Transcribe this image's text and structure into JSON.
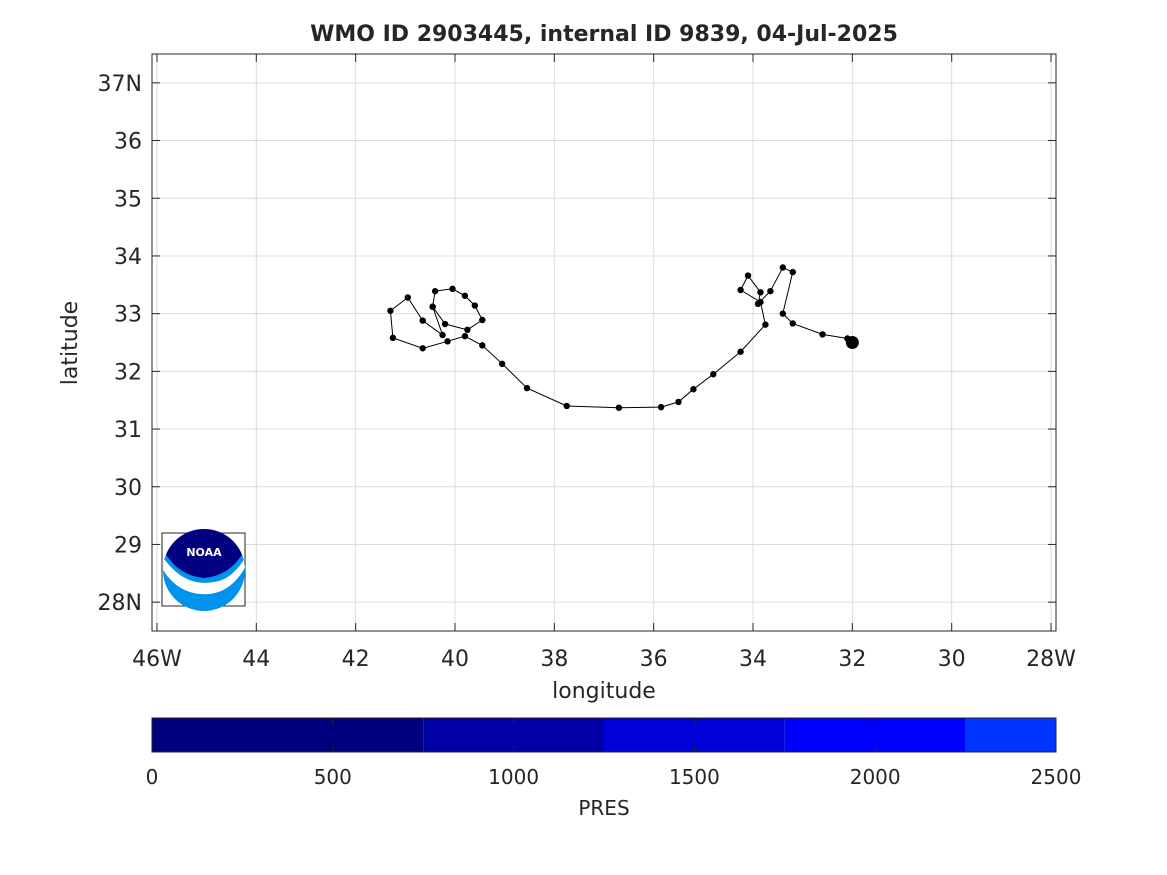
{
  "chart_data": [
    {
      "type": "scatter",
      "title": "WMO ID 2903445, internal ID 9839, 04-Jul-2025",
      "xlabel": "longitude",
      "ylabel": "latitude",
      "xlim": [
        -46.1,
        -27.9
      ],
      "ylim": [
        27.5,
        37.5
      ],
      "grid": true,
      "x_ticks": [
        -46,
        -44,
        -42,
        -40,
        -38,
        -36,
        -34,
        -32,
        -30,
        -28
      ],
      "x_tick_labels": [
        "46W",
        "44",
        "42",
        "40",
        "38",
        "36",
        "34",
        "32",
        "30",
        "28W"
      ],
      "y_ticks": [
        28,
        29,
        30,
        31,
        32,
        33,
        34,
        35,
        36,
        37
      ],
      "y_tick_labels": [
        "28N",
        "29",
        "30",
        "31",
        "32",
        "33",
        "34",
        "35",
        "36",
        "37N"
      ],
      "track": {
        "lon": [
          -32.0,
          -32.1,
          -32.6,
          -33.2,
          -33.4,
          -33.2,
          -33.4,
          -33.65,
          -33.9,
          -33.85,
          -34.1,
          -34.25,
          -33.85,
          -33.75,
          -34.25,
          -34.8,
          -35.2,
          -35.5,
          -35.85,
          -36.7,
          -37.75,
          -38.55,
          -39.05,
          -39.45,
          -39.8,
          -40.15,
          -40.65,
          -41.25,
          -41.3,
          -40.95,
          -40.65,
          -40.25,
          -40.45,
          -40.4,
          -40.05,
          -39.8,
          -39.6,
          -39.45,
          -39.75,
          -40.2,
          -40.45
        ],
        "lat": [
          32.5,
          32.57,
          32.64,
          32.83,
          33.0,
          33.72,
          33.8,
          33.39,
          33.17,
          33.37,
          33.66,
          33.41,
          33.2,
          32.81,
          32.34,
          31.95,
          31.69,
          31.47,
          31.38,
          31.37,
          31.4,
          31.71,
          32.13,
          32.45,
          32.61,
          32.52,
          32.4,
          32.58,
          33.05,
          33.28,
          32.88,
          32.63,
          33.12,
          33.39,
          33.43,
          33.31,
          33.14,
          32.89,
          32.72,
          32.82,
          33.12
        ]
      },
      "latest_position": {
        "lon": -32.0,
        "lat": 32.5
      },
      "colorbar": {
        "label": "PRES",
        "range": [
          0,
          2500
        ],
        "ticks": [
          0,
          500,
          1000,
          1500,
          2000,
          2500
        ],
        "tick_labels": [
          "0",
          "500",
          "1000",
          "1500",
          "2000",
          "2500"
        ],
        "bands": [
          {
            "from": 0,
            "to": 750,
            "color": "#00007f"
          },
          {
            "from": 750,
            "to": 1250,
            "color": "#0000a6"
          },
          {
            "from": 1250,
            "to": 1750,
            "color": "#0000d9"
          },
          {
            "from": 1750,
            "to": 2250,
            "color": "#0000ff"
          },
          {
            "from": 2250,
            "to": 2500,
            "color": "#0035ff"
          }
        ]
      },
      "logo": {
        "text": "NOAA",
        "dark_color": "#000080",
        "light_color": "#0093ed"
      }
    }
  ]
}
